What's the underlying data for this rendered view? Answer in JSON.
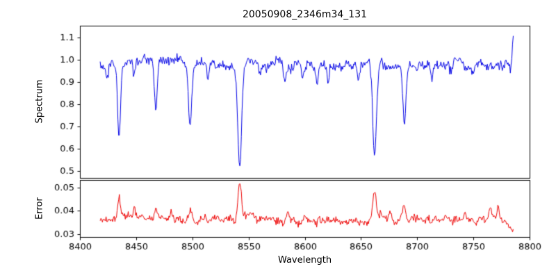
{
  "figure": {
    "background": "#ffffff",
    "axis_color": "#000000"
  },
  "chart_data": {
    "type": "line",
    "title": "20050908_2346m34_131",
    "xlabel": "Wavelength",
    "legend": "none",
    "grid": false,
    "x_axis": {
      "min": 8400,
      "max": 8800,
      "ticks": [
        8400,
        8450,
        8500,
        8550,
        8600,
        8650,
        8700,
        8750,
        8800
      ],
      "tick_labels": [
        "8400",
        "8450",
        "8500",
        "8550",
        "8600",
        "8650",
        "8700",
        "8750",
        "8800"
      ]
    },
    "x_data_start": 8418,
    "x_data_end": 8785.5,
    "n_points": 560,
    "noise_seed": 20050908,
    "panels": [
      {
        "name": "spectrum",
        "ylabel": "Spectrum",
        "line_color": "#0000e6",
        "ylim": [
          0.468,
          1.152
        ],
        "ticks": [
          0.5,
          0.6,
          0.7,
          0.8,
          0.9,
          1.0,
          1.1
        ],
        "tick_labels": [
          "0.5",
          "0.6",
          "0.7",
          "0.8",
          "0.9",
          "1.0",
          "1.1"
        ],
        "continuum": 0.975,
        "noise": {
          "white": 0.01,
          "ar_coef": 0.92,
          "ar_innov": 0.005
        },
        "absorption_lines": [
          {
            "center": 8424.0,
            "depth": 0.05,
            "width": 1.0
          },
          {
            "center": 8434.8,
            "depth": 0.335,
            "width": 1.2
          },
          {
            "center": 8448.0,
            "depth": 0.055,
            "width": 1.0
          },
          {
            "center": 8467.5,
            "depth": 0.215,
            "width": 1.2
          },
          {
            "center": 8498.0,
            "depth": 0.275,
            "width": 1.4
          },
          {
            "center": 8514.0,
            "depth": 0.075,
            "width": 1.0
          },
          {
            "center": 8542.1,
            "depth": 0.465,
            "width": 1.8
          },
          {
            "center": 8560.0,
            "depth": 0.05,
            "width": 1.0
          },
          {
            "center": 8582.0,
            "depth": 0.08,
            "width": 1.0
          },
          {
            "center": 8598.0,
            "depth": 0.06,
            "width": 1.0
          },
          {
            "center": 8611.0,
            "depth": 0.1,
            "width": 1.1
          },
          {
            "center": 8621.0,
            "depth": 0.07,
            "width": 1.0
          },
          {
            "center": 8648.0,
            "depth": 0.06,
            "width": 1.0
          },
          {
            "center": 8662.1,
            "depth": 0.425,
            "width": 1.6
          },
          {
            "center": 8688.6,
            "depth": 0.25,
            "width": 1.3
          },
          {
            "center": 8713.0,
            "depth": 0.065,
            "width": 1.0
          },
          {
            "center": 8730.0,
            "depth": 0.05,
            "width": 1.0
          },
          {
            "center": 8750.0,
            "depth": 0.05,
            "width": 1.0
          }
        ],
        "emission_spikes": [
          {
            "center": 8785.5,
            "height": 0.145,
            "width": 0.8
          }
        ]
      },
      {
        "name": "error",
        "ylabel": "Error",
        "line_color": "#ee0000",
        "ylim": [
          0.0288,
          0.0532
        ],
        "ticks": [
          0.03,
          0.04,
          0.05
        ],
        "tick_labels": [
          "0.03",
          "0.04",
          "0.05"
        ],
        "baseline": 0.0362,
        "noise": {
          "white": 0.0008,
          "ar_coef": 0.9,
          "ar_innov": 0.0004
        },
        "peaks": [
          {
            "center": 8434.8,
            "height": 0.0085,
            "width": 1.2
          },
          {
            "center": 8448.0,
            "height": 0.004,
            "width": 1.0
          },
          {
            "center": 8467.5,
            "height": 0.0055,
            "width": 1.2
          },
          {
            "center": 8481.0,
            "height": 0.003,
            "width": 1.0
          },
          {
            "center": 8498.0,
            "height": 0.0045,
            "width": 1.4
          },
          {
            "center": 8542.1,
            "height": 0.0155,
            "width": 1.5
          },
          {
            "center": 8550.0,
            "height": 0.0015,
            "width": 8.0
          },
          {
            "center": 8585.0,
            "height": 0.003,
            "width": 1.2
          },
          {
            "center": 8662.1,
            "height": 0.0105,
            "width": 1.5
          },
          {
            "center": 8676.0,
            "height": 0.003,
            "width": 1.0
          },
          {
            "center": 8688.6,
            "height": 0.0045,
            "width": 1.2
          },
          {
            "center": 8743.0,
            "height": 0.003,
            "width": 1.0
          },
          {
            "center": 8765.0,
            "height": 0.0045,
            "width": 1.0
          },
          {
            "center": 8772.0,
            "height": 0.0055,
            "width": 0.9
          }
        ],
        "taper": {
          "start": 8776,
          "slope": 0.00045
        }
      }
    ]
  }
}
